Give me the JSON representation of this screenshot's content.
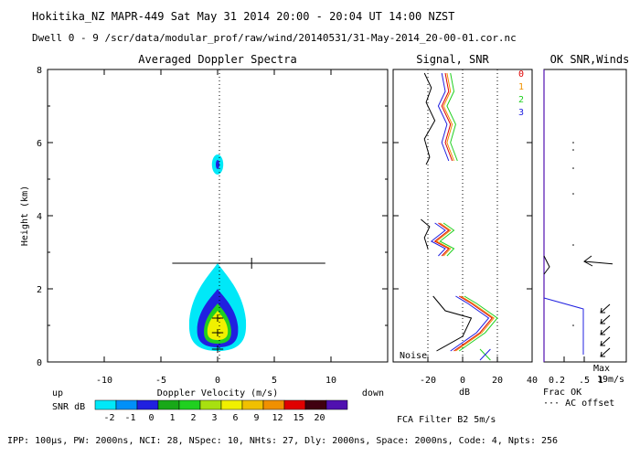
{
  "header": {
    "line1": "Hokitika_NZ  MAPR-449  Sat May 31 2014 20:00 - 20:04 UT 14:00 NZST",
    "line2": "Dwell  0 - 9   /scr/data/modular_prof/raw/wind/20140531/31-May-2014_20-00-01.cor.nc"
  },
  "footer": "IPP: 100µs,  PW: 2000ns,  NCI:  28,  NSpec: 10, NHts: 27,  Dly: 2000ns,  Space: 2000ns,  Code: 4,  Npts: 256",
  "colors": {
    "cyan": "#00e8f8",
    "blue": "#2020e0",
    "green": "#20d020",
    "yellow": "#f0f000",
    "red": "#e00000",
    "orange": "#f09000",
    "purple": "#5010b0",
    "black": "#000000"
  },
  "chart_data": [
    {
      "type": "heatmap",
      "title": "Averaged Doppler Spectra",
      "xlabel": "Doppler Velocity (m/s)",
      "ylabel": "Height (km)",
      "xlim": [
        -15,
        15
      ],
      "ylim": [
        0,
        8
      ],
      "xticks": [
        -10,
        -5,
        0,
        5,
        10
      ],
      "yticks": [
        0,
        2,
        4,
        6,
        8
      ],
      "left_label": "up",
      "right_label": "down",
      "colorbar_label": "SNR dB",
      "colorbar_ticks": [
        "-2",
        "-1",
        "0",
        "1",
        "2",
        "3",
        "6",
        "9",
        "12",
        "15",
        "20"
      ],
      "colorbar_colors": [
        "#00e8f8",
        "#0090f8",
        "#2020e0",
        "#18a818",
        "#20d020",
        "#a8e010",
        "#f0f000",
        "#f0c000",
        "#f09000",
        "#e00000",
        "#400010",
        "#5010b0"
      ],
      "echo_layers": [
        {
          "snr": "-2",
          "color": "#00e8f8",
          "height_km": [
            0.3,
            2.7
          ],
          "half_width_ms": [
            1.2,
            2.5
          ]
        },
        {
          "snr": "0",
          "color": "#2020e0",
          "height_km": [
            0.4,
            2.0
          ],
          "half_width_ms": [
            0.8,
            1.8
          ]
        },
        {
          "snr": "2",
          "color": "#20d020",
          "height_km": [
            0.5,
            1.6
          ],
          "half_width_ms": [
            0.6,
            1.2
          ]
        },
        {
          "snr": "3",
          "color": "#f0f000",
          "height_km": [
            0.6,
            1.4
          ],
          "half_width_ms": [
            0.4,
            0.9
          ]
        }
      ],
      "upper_echo": {
        "height_km": [
          5.2,
          5.6
        ],
        "half_width_ms": 0.5
      },
      "wind_marker": {
        "height_km": 2.7,
        "velocity_range": [
          -4,
          9.5
        ],
        "tick_at": 3
      }
    },
    {
      "type": "line",
      "title": "Signal, SNR",
      "xlabel": "dB",
      "xlim": [
        -40,
        40
      ],
      "xticks": [
        -20,
        0,
        20,
        40
      ],
      "ylim": [
        0,
        8
      ],
      "noise_label": "Noise",
      "series": [
        {
          "name": "0",
          "color": "#e00000"
        },
        {
          "name": "1",
          "color": "#f09000"
        },
        {
          "name": "2",
          "color": "#20d020"
        },
        {
          "name": "3",
          "color": "#2020e0"
        },
        {
          "name": "noise",
          "color": "#000000"
        }
      ]
    },
    {
      "type": "line",
      "title": "OK SNR,Winds",
      "xlim": [
        0,
        1
      ],
      "xticks": [
        ".5",
        "1"
      ],
      "xtick_prefix": "0.2",
      "legend": [
        "Frac OK",
        "··· AC offset"
      ],
      "max_label": "Max",
      "max_value": "19m/s",
      "filter_label": "FCA Filter B2  5m/s"
    }
  ]
}
